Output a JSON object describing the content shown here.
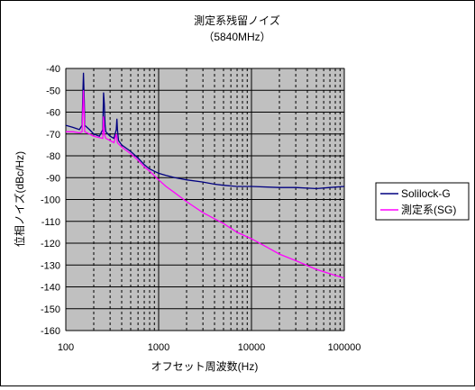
{
  "chart_data": {
    "type": "line",
    "title": "測定系残留ノイズ",
    "subtitle": "（5840MHz）",
    "xlabel": "オフセット周波数(Hz)",
    "ylabel": "位相ノイズ(dBc/Hz)",
    "xscale": "log",
    "xlim": [
      100,
      100000
    ],
    "ylim": [
      -160,
      -40
    ],
    "xticks": [
      100,
      1000,
      10000,
      100000
    ],
    "xtick_labels": [
      "100",
      "1000",
      "10000",
      "100000"
    ],
    "yticks": [
      -40,
      -50,
      -60,
      -70,
      -80,
      -90,
      -100,
      -110,
      -120,
      -130,
      -140,
      -150,
      -160
    ],
    "ytick_labels": [
      "-40",
      "-50",
      "-60",
      "-70",
      "-80",
      "-90",
      "-100",
      "-110",
      "-120",
      "-130",
      "-140",
      "-150",
      "-160"
    ],
    "grid": true,
    "plot_background": "#c0c0c0",
    "legend_position": "right",
    "series": [
      {
        "name": "Solilock-G",
        "color": "#000080",
        "x": [
          100,
          120,
          140,
          150,
          152,
          155,
          158,
          160,
          180,
          200,
          230,
          250,
          255,
          260,
          265,
          270,
          300,
          330,
          350,
          355,
          360,
          370,
          400,
          500,
          600,
          700,
          800,
          1000,
          1200,
          1500,
          2000,
          3000,
          4000,
          5000,
          7000,
          10000,
          20000,
          30000,
          50000,
          70000,
          100000
        ],
        "y": [
          -66,
          -67,
          -68,
          -66,
          -55,
          -42,
          -55,
          -66,
          -68,
          -70,
          -71,
          -68,
          -51,
          -56,
          -66,
          -69,
          -71,
          -72,
          -68,
          -63,
          -68,
          -73,
          -75,
          -78,
          -81,
          -84,
          -86,
          -88,
          -89,
          -90,
          -91,
          -92,
          -93,
          -93.5,
          -94,
          -94,
          -94.5,
          -94.5,
          -95,
          -94.5,
          -94
        ]
      },
      {
        "name": "測定系(SG)",
        "color": "#ff00ff",
        "x": [
          100,
          120,
          140,
          150,
          155,
          160,
          180,
          200,
          250,
          255,
          260,
          270,
          300,
          330,
          350,
          360,
          400,
          500,
          600,
          700,
          800,
          1000,
          1200,
          1500,
          2000,
          3000,
          5000,
          7000,
          10000,
          15000,
          20000,
          30000,
          50000,
          70000,
          100000
        ],
        "y": [
          -69,
          -69,
          -69.5,
          -69,
          -50,
          -69,
          -70,
          -71,
          -72,
          -62,
          -70,
          -72,
          -73,
          -74,
          -70,
          -74,
          -76,
          -79,
          -82,
          -85,
          -87,
          -91,
          -94,
          -97,
          -101,
          -106,
          -111,
          -115,
          -118,
          -122,
          -125,
          -128,
          -132,
          -134,
          -136
        ]
      }
    ]
  }
}
